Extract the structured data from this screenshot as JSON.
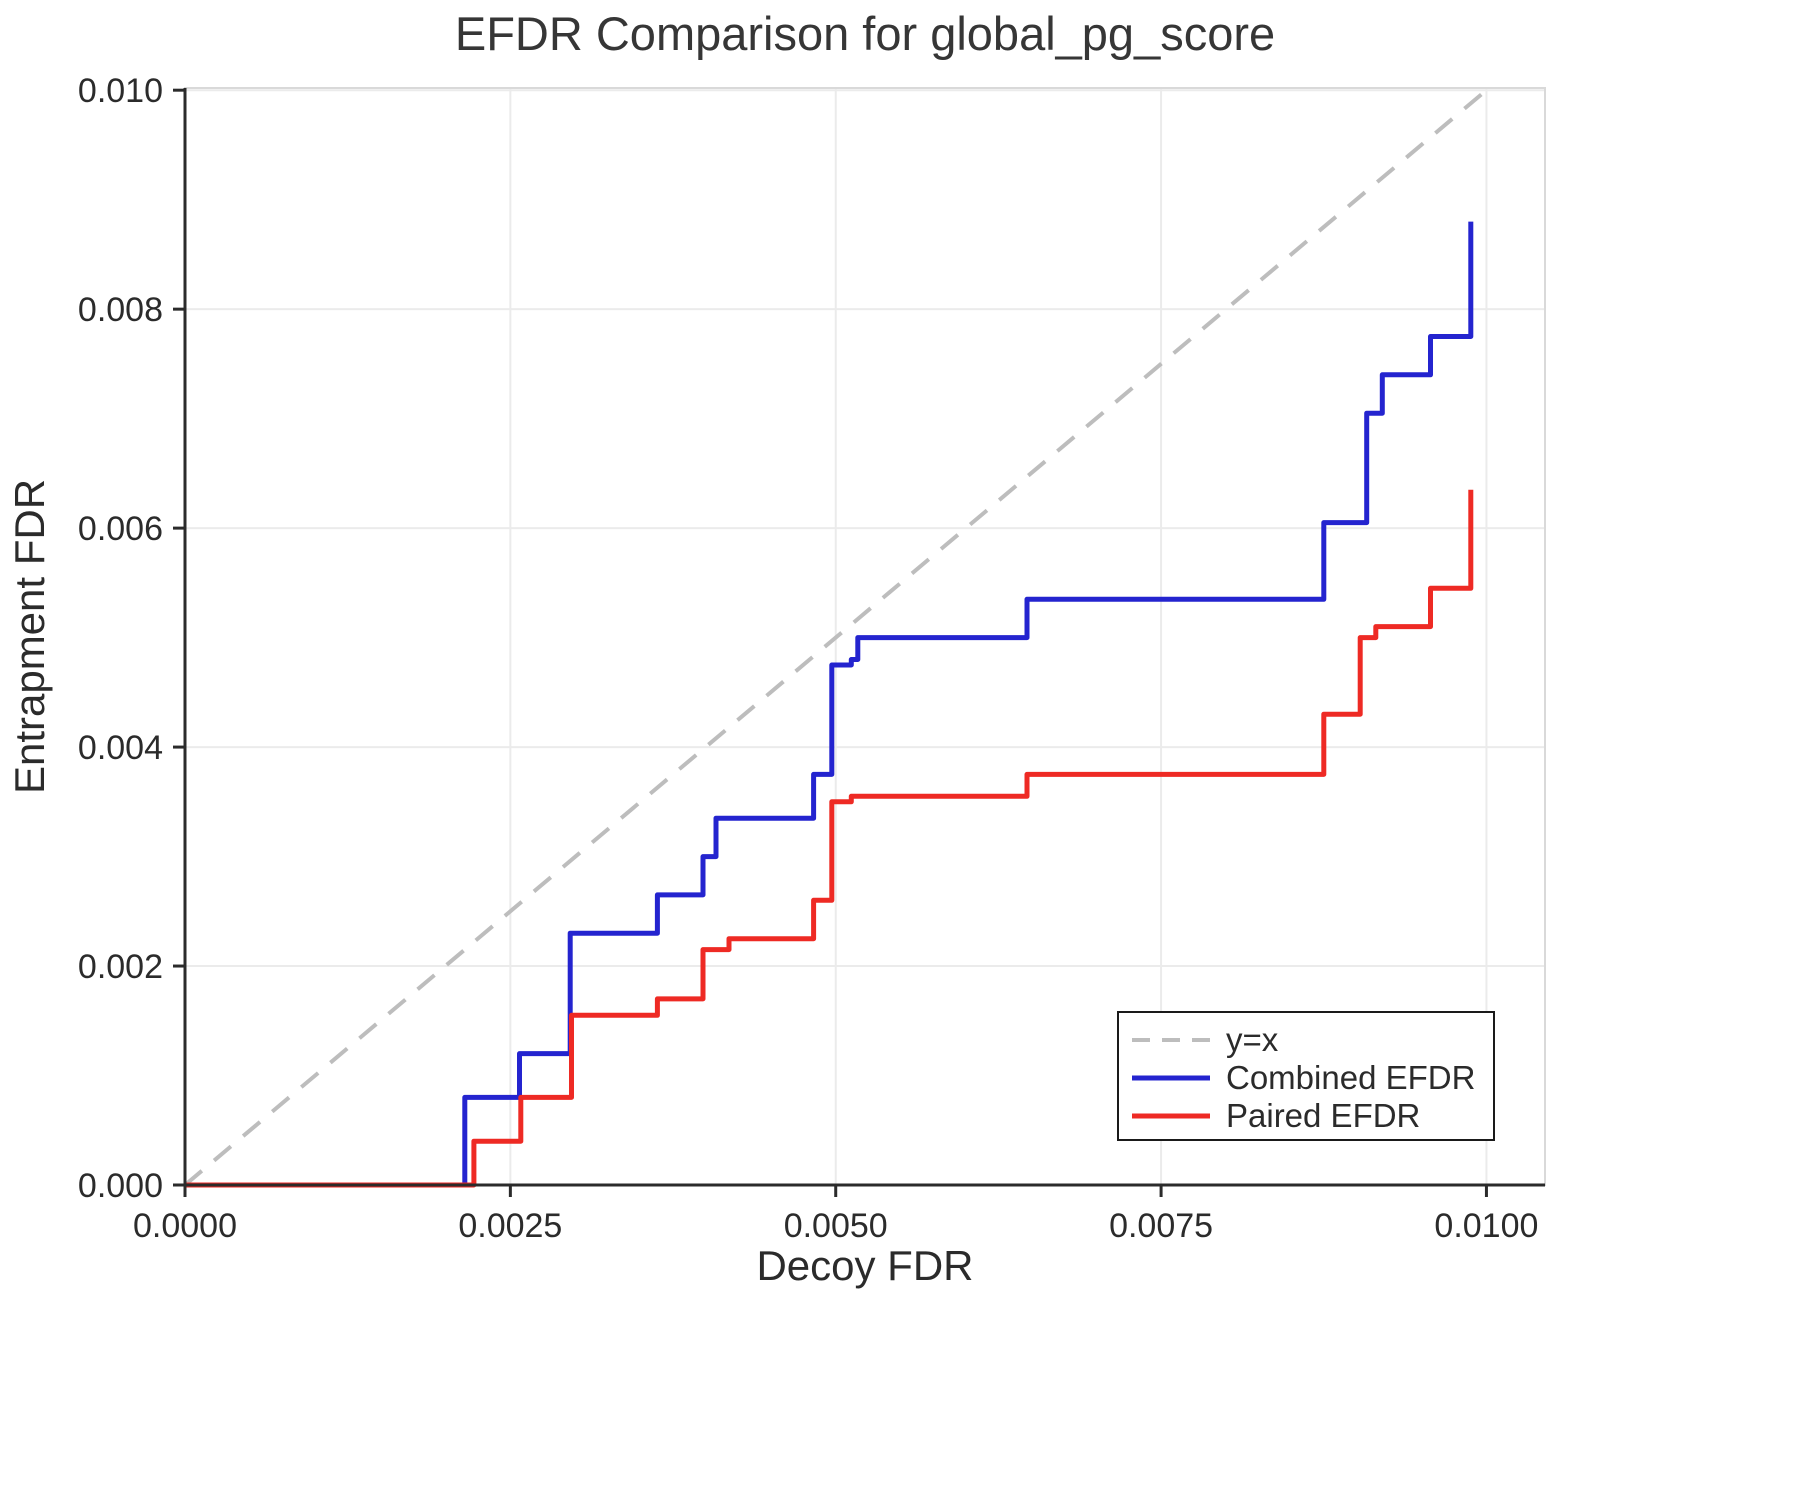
{
  "chart_data": {
    "type": "line",
    "title": "EFDR Comparison for global_pg_score",
    "xlabel": "Decoy FDR",
    "ylabel": "Entrapment FDR",
    "xlim": [
      0.0,
      0.01045
    ],
    "ylim": [
      0.0,
      0.01002
    ],
    "grid": true,
    "legend_position": "bottom-right",
    "x_ticks": [
      0.0,
      0.0025,
      0.005,
      0.0075,
      0.01
    ],
    "x_tick_labels": [
      "0.0000",
      "0.0025",
      "0.0050",
      "0.0075",
      "0.0100"
    ],
    "y_ticks": [
      0.0,
      0.002,
      0.004,
      0.006,
      0.008,
      0.01
    ],
    "y_tick_labels": [
      "0.000",
      "0.002",
      "0.004",
      "0.006",
      "0.008",
      "0.010"
    ],
    "colors": {
      "identity": "#bdbdbd",
      "combined": "#2424cf",
      "paired": "#ee2a24",
      "grid": "#ebebeb",
      "frame": "#d9d9d9",
      "axis": "#2b2b2b",
      "text": "#2b2b2b",
      "title_text": "#363636",
      "legend_border": "#1a1a1a",
      "legend_bg": "#ffffff"
    },
    "series": [
      {
        "name": "y=x",
        "style": "dashed",
        "color_key": "identity",
        "points": [
          [
            0.0,
            0.0
          ],
          [
            0.01002,
            0.01002
          ]
        ]
      },
      {
        "name": "Combined EFDR",
        "style": "solid",
        "color_key": "combined",
        "points": [
          [
            0.0,
            0.0
          ],
          [
            0.00215,
            0.0
          ],
          [
            0.00215,
            0.0008
          ],
          [
            0.00257,
            0.0008
          ],
          [
            0.00257,
            0.0012
          ],
          [
            0.00296,
            0.0012
          ],
          [
            0.00296,
            0.0023
          ],
          [
            0.00363,
            0.0023
          ],
          [
            0.00363,
            0.00265
          ],
          [
            0.00398,
            0.00265
          ],
          [
            0.00398,
            0.003
          ],
          [
            0.00408,
            0.003
          ],
          [
            0.00408,
            0.00335
          ],
          [
            0.00483,
            0.00335
          ],
          [
            0.00483,
            0.00375
          ],
          [
            0.00497,
            0.00375
          ],
          [
            0.00497,
            0.00475
          ],
          [
            0.00512,
            0.00475
          ],
          [
            0.00512,
            0.0048
          ],
          [
            0.00517,
            0.0048
          ],
          [
            0.00517,
            0.005
          ],
          [
            0.00647,
            0.005
          ],
          [
            0.00647,
            0.00535
          ],
          [
            0.00875,
            0.00535
          ],
          [
            0.00875,
            0.00605
          ],
          [
            0.00908,
            0.00605
          ],
          [
            0.00908,
            0.00705
          ],
          [
            0.0092,
            0.00705
          ],
          [
            0.0092,
            0.0074
          ],
          [
            0.00957,
            0.0074
          ],
          [
            0.00957,
            0.00775
          ],
          [
            0.00988,
            0.00775
          ],
          [
            0.00988,
            0.0088
          ]
        ]
      },
      {
        "name": "Paired EFDR",
        "style": "solid",
        "color_key": "paired",
        "points": [
          [
            0.0,
            0.0
          ],
          [
            0.00222,
            0.0
          ],
          [
            0.00222,
            0.0004
          ],
          [
            0.00258,
            0.0004
          ],
          [
            0.00258,
            0.0008
          ],
          [
            0.00297,
            0.0008
          ],
          [
            0.00297,
            0.00155
          ],
          [
            0.00363,
            0.00155
          ],
          [
            0.00363,
            0.0017
          ],
          [
            0.00398,
            0.0017
          ],
          [
            0.00398,
            0.00215
          ],
          [
            0.00418,
            0.00215
          ],
          [
            0.00418,
            0.00225
          ],
          [
            0.00483,
            0.00225
          ],
          [
            0.00483,
            0.0026
          ],
          [
            0.00497,
            0.0026
          ],
          [
            0.00497,
            0.0035
          ],
          [
            0.00512,
            0.0035
          ],
          [
            0.00512,
            0.00355
          ],
          [
            0.00647,
            0.00355
          ],
          [
            0.00647,
            0.00375
          ],
          [
            0.00875,
            0.00375
          ],
          [
            0.00875,
            0.0043
          ],
          [
            0.00903,
            0.0043
          ],
          [
            0.00903,
            0.005
          ],
          [
            0.00915,
            0.005
          ],
          [
            0.00915,
            0.0051
          ],
          [
            0.00957,
            0.0051
          ],
          [
            0.00957,
            0.00545
          ],
          [
            0.00988,
            0.00545
          ],
          [
            0.00988,
            0.00635
          ]
        ]
      }
    ]
  }
}
